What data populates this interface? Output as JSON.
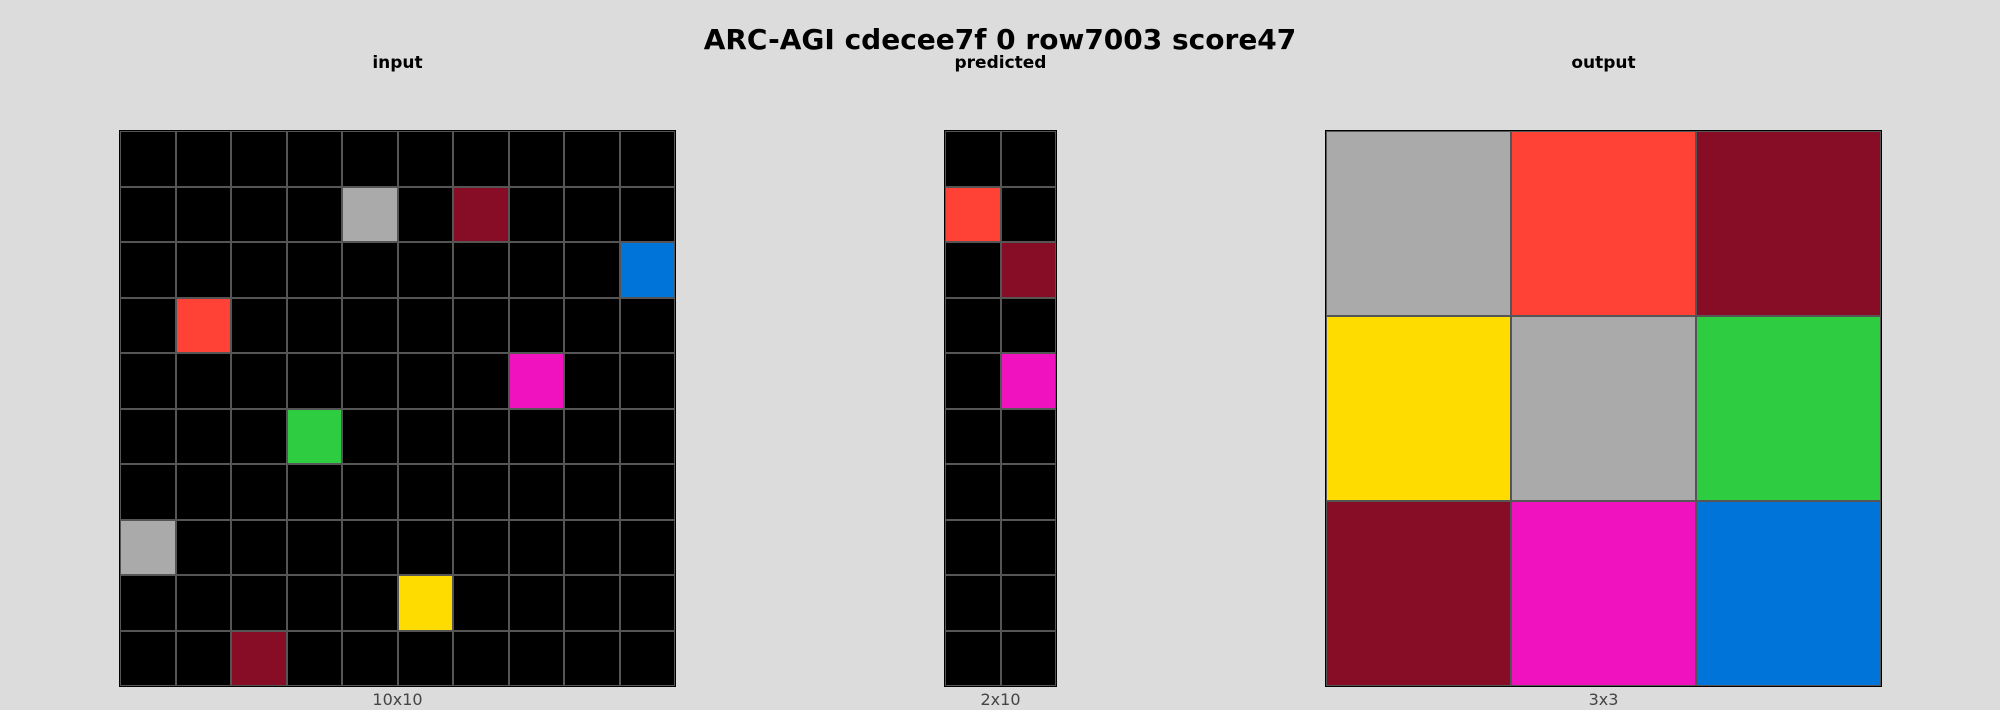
{
  "title": "ARC-AGI cdecee7f 0 row7003 score47",
  "palette": {
    "0": "#000000",
    "1": "#0074d9",
    "2": "#ff4136",
    "3": "#2ecc40",
    "4": "#ffdc00",
    "5": "#aaaaaa",
    "6": "#f012be",
    "7": "#ff851b",
    "8": "#7fdbff",
    "9": "#870c25"
  },
  "panels": [
    {
      "title": "input",
      "caption": "10x10",
      "rows": 10,
      "cols": 10,
      "grid": [
        [
          0,
          0,
          0,
          0,
          0,
          0,
          0,
          0,
          0,
          0
        ],
        [
          0,
          0,
          0,
          0,
          5,
          0,
          9,
          0,
          0,
          0
        ],
        [
          0,
          0,
          0,
          0,
          0,
          0,
          0,
          0,
          0,
          1
        ],
        [
          0,
          2,
          0,
          0,
          0,
          0,
          0,
          0,
          0,
          0
        ],
        [
          0,
          0,
          0,
          0,
          0,
          0,
          0,
          6,
          0,
          0
        ],
        [
          0,
          0,
          0,
          3,
          0,
          0,
          0,
          0,
          0,
          0
        ],
        [
          0,
          0,
          0,
          0,
          0,
          0,
          0,
          0,
          0,
          0
        ],
        [
          5,
          0,
          0,
          0,
          0,
          0,
          0,
          0,
          0,
          0
        ],
        [
          0,
          0,
          0,
          0,
          0,
          4,
          0,
          0,
          0,
          0
        ],
        [
          0,
          0,
          9,
          0,
          0,
          0,
          0,
          0,
          0,
          0
        ]
      ]
    },
    {
      "title": "predicted",
      "caption": "2x10",
      "rows": 10,
      "cols": 2,
      "grid": [
        [
          0,
          0
        ],
        [
          2,
          0
        ],
        [
          0,
          9
        ],
        [
          0,
          0
        ],
        [
          0,
          6
        ],
        [
          0,
          0
        ],
        [
          0,
          0
        ],
        [
          0,
          0
        ],
        [
          0,
          0
        ],
        [
          0,
          0
        ]
      ]
    },
    {
      "title": "output",
      "caption": "3x3",
      "rows": 3,
      "cols": 3,
      "grid": [
        [
          5,
          2,
          9
        ],
        [
          4,
          5,
          3
        ],
        [
          9,
          6,
          1
        ]
      ]
    }
  ]
}
